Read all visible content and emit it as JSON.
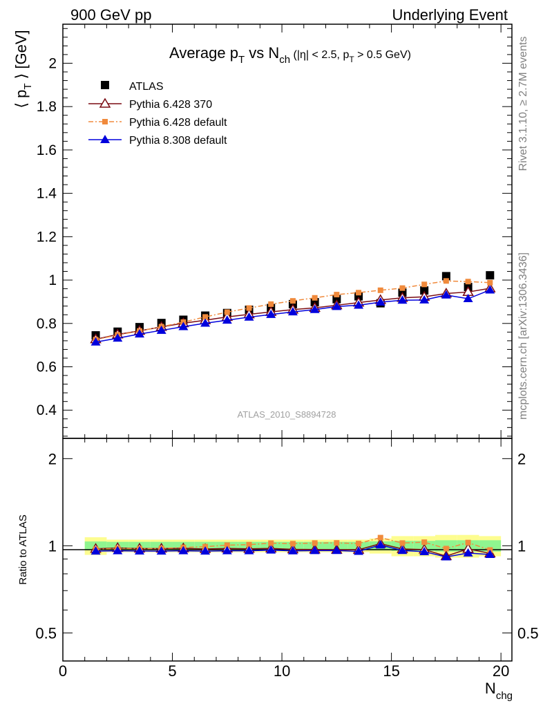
{
  "header": {
    "left": "900 GeV pp",
    "right": "Underlying Event"
  },
  "side_text": {
    "rivet": "Rivet 3.1.10, ≥ 2.7M events",
    "mcplots": "mcplots.cern.ch [arXiv:1306.3436]"
  },
  "analysis_label": "ATLAS_2010_S8894728",
  "colors": {
    "data": "#000000",
    "pythia6_370": "#7a0a12",
    "pythia6_default": "#f08a3c",
    "pythia8_default": "#0000dd",
    "band_inner": "#8ff58f",
    "band_outer": "#fdfd90"
  },
  "chart_data": [
    {
      "type": "scatter",
      "title": "Average pT vs Nch (|η| < 2.5, pT > 0.5 GeV)",
      "title_parts": {
        "main": "Average p",
        "sub_T": "T",
        "vs": " vs N",
        "sub_ch": "ch",
        "cuts_a": " (|η| < 2.5, p",
        "sub_T2": "T",
        "cuts_b": " > 0.5 GeV)"
      },
      "ylabel": "⟨ pT ⟩ [GeV]",
      "ylabel_parts": {
        "a": "⟨ p",
        "sub": "T",
        "b": " ⟩ [GeV]"
      },
      "xlabel": "Nchg",
      "xlabel_parts": {
        "main": "N",
        "sub": "chg"
      },
      "xlim": [
        0,
        20.5
      ],
      "ylim": [
        0.27,
        2.18
      ],
      "yticks": [
        0.4,
        0.6,
        0.8,
        1,
        1.2,
        1.4,
        1.6,
        1.8,
        2
      ],
      "ytick_labels": [
        "0.4",
        "0.6",
        "0.8",
        "1",
        "1.2",
        "1.4",
        "1.6",
        "1.8",
        "2"
      ],
      "xticks": [
        0,
        5,
        10,
        15,
        20
      ],
      "xtick_labels": [
        "0",
        "5",
        "10",
        "15",
        "20"
      ],
      "legend_position": "top-left",
      "x": [
        1.5,
        2.5,
        3.5,
        4.5,
        5.5,
        6.5,
        7.5,
        8.5,
        9.5,
        10.5,
        11.5,
        12.5,
        13.5,
        14.5,
        15.5,
        16.5,
        17.5,
        18.5,
        19.5
      ],
      "series": [
        {
          "name": "ATLAS",
          "key": "data",
          "marker": "square",
          "line": "none",
          "values": [
            0.745,
            0.762,
            0.783,
            0.802,
            0.817,
            0.836,
            0.848,
            0.863,
            0.871,
            0.889,
            0.898,
            0.912,
            0.925,
            0.893,
            0.942,
            0.952,
            1.018,
            0.968,
            1.022
          ]
        },
        {
          "name": "Pythia 6.428 370",
          "key": "pythia6_370",
          "marker": "triangle-open",
          "line": "solid",
          "values": [
            0.727,
            0.749,
            0.766,
            0.784,
            0.801,
            0.815,
            0.83,
            0.842,
            0.853,
            0.864,
            0.872,
            0.884,
            0.896,
            0.908,
            0.918,
            0.923,
            0.938,
            0.945,
            0.962
          ]
        },
        {
          "name": "Pythia 6.428 default",
          "key": "pythia6_default",
          "marker": "square-small",
          "line": "dashdot",
          "values": [
            0.725,
            0.747,
            0.765,
            0.785,
            0.806,
            0.83,
            0.852,
            0.871,
            0.889,
            0.904,
            0.918,
            0.933,
            0.942,
            0.953,
            0.963,
            0.98,
            0.996,
            0.993,
            0.988
          ]
        },
        {
          "name": "Pythia 8.308 default",
          "key": "pythia8_default",
          "marker": "triangle",
          "line": "solid",
          "values": [
            0.714,
            0.732,
            0.751,
            0.768,
            0.785,
            0.801,
            0.815,
            0.829,
            0.841,
            0.853,
            0.864,
            0.878,
            0.884,
            0.898,
            0.907,
            0.908,
            0.931,
            0.914,
            0.954
          ]
        }
      ]
    },
    {
      "type": "line",
      "ylabel": "Ratio to ATLAS",
      "ylim": [
        0.4,
        2.35
      ],
      "log_scale_y": true,
      "yticks": [
        0.5,
        1,
        2
      ],
      "ytick_labels": [
        "0.5",
        "1",
        "2"
      ],
      "xlim": [
        0,
        20.5
      ],
      "x": [
        1.5,
        2.5,
        3.5,
        4.5,
        5.5,
        6.5,
        7.5,
        8.5,
        9.5,
        10.5,
        11.5,
        12.5,
        13.5,
        14.5,
        15.5,
        16.5,
        17.5,
        18.5,
        19.5
      ],
      "band_inner_halfwidth": [
        0.035,
        0.032,
        0.032,
        0.032,
        0.032,
        0.032,
        0.032,
        0.032,
        0.032,
        0.032,
        0.032,
        0.032,
        0.032,
        0.036,
        0.04,
        0.04,
        0.045,
        0.045,
        0.045
      ],
      "band_outer_halfwidth": [
        0.07,
        0.05,
        0.05,
        0.05,
        0.05,
        0.05,
        0.05,
        0.05,
        0.05,
        0.05,
        0.05,
        0.05,
        0.05,
        0.06,
        0.08,
        0.08,
        0.09,
        0.09,
        0.08
      ],
      "series": [
        {
          "name": "Pythia 6.428 370",
          "key": "pythia6_370",
          "values": [
            0.976,
            0.983,
            0.978,
            0.978,
            0.98,
            0.975,
            0.979,
            0.976,
            0.979,
            0.972,
            0.971,
            0.969,
            0.969,
            1.017,
            0.975,
            0.97,
            0.921,
            0.976,
            0.941
          ]
        },
        {
          "name": "Pythia 6.428 default",
          "key": "pythia6_default",
          "values": [
            0.973,
            0.98,
            0.977,
            0.979,
            0.987,
            0.993,
            1.005,
            1.009,
            1.021,
            1.017,
            1.022,
            1.023,
            1.018,
            1.067,
            1.022,
            1.029,
            0.978,
            1.026,
            0.967
          ]
        },
        {
          "name": "Pythia 8.308 default",
          "key": "pythia8_default",
          "values": [
            0.958,
            0.961,
            0.959,
            0.958,
            0.961,
            0.958,
            0.961,
            0.961,
            0.966,
            0.96,
            0.962,
            0.963,
            0.956,
            1.006,
            0.963,
            0.954,
            0.915,
            0.944,
            0.933
          ]
        }
      ]
    }
  ]
}
